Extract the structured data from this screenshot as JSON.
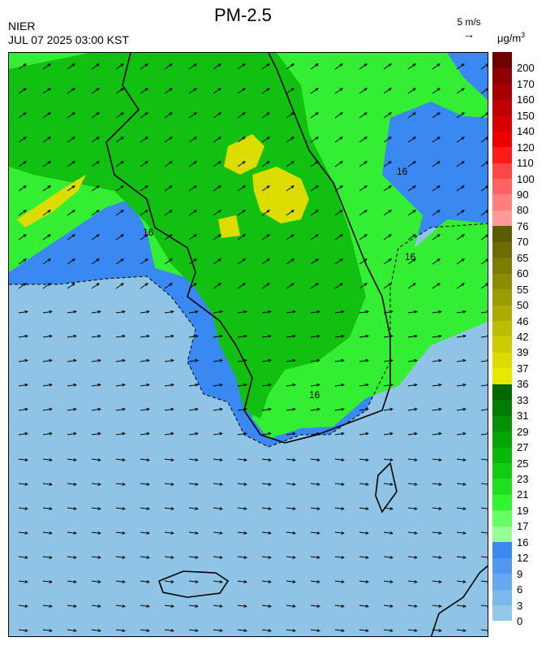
{
  "header": {
    "agency": "NIER",
    "datetime": "JUL 07 2025 03:00 KST",
    "title": "PM-2.5"
  },
  "wind_reference": {
    "label": "5 m/s",
    "arrow": "→"
  },
  "colorbar": {
    "unit": "μg/m",
    "unit_exponent": "3",
    "levels": [
      "0",
      "3",
      "6",
      "9",
      "12",
      "16",
      "17",
      "19",
      "21",
      "23",
      "25",
      "27",
      "29",
      "31",
      "33",
      "36",
      "37",
      "39",
      "42",
      "46",
      "50",
      "55",
      "60",
      "65",
      "70",
      "76",
      "80",
      "90",
      "100",
      "110",
      "120",
      "140",
      "150",
      "160",
      "170",
      "200"
    ],
    "colors": [
      "#92c8e8",
      "#7cb8ec",
      "#66a8ef",
      "#5098f1",
      "#3a88f2",
      "#96ff96",
      "#66ff66",
      "#33f433",
      "#1ee01e",
      "#12cc12",
      "#0ab80a",
      "#07a407",
      "#059005",
      "#037c03",
      "#026802",
      "#e8e800",
      "#dcdc00",
      "#cccc00",
      "#bcbc00",
      "#acac00",
      "#9c9c00",
      "#8c8c00",
      "#7c7c00",
      "#6c6c00",
      "#5c5c00",
      "#ff9a9a",
      "#ff7e7e",
      "#ff6262",
      "#ff4646",
      "#ff1a1a",
      "#ee0000",
      "#d80000",
      "#c00000",
      "#a80000",
      "#900000",
      "#700000"
    ]
  },
  "map": {
    "contour_label": "16",
    "wind_direction": "west-northwest to east-southeast",
    "colors": {
      "sea": "#8fc4e6",
      "low": "#3a88f2",
      "mid": "#33ee33",
      "high": "#12c012",
      "peak": "#dcdc00"
    }
  }
}
